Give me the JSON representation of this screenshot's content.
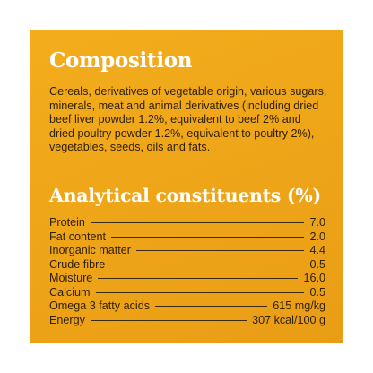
{
  "composition": {
    "title": "Composition",
    "text": "Cereals, derivatives of vegetable origin, various sugars, minerals, meat and animal derivatives (including dried beef liver powder 1.2%, equivalent to beef 2% and dried poultry powder 1.2%, equivalent to poultry 2%), vegetables, seeds, oils and fats."
  },
  "analytical": {
    "title": "Analytical constituents (%)",
    "rows": [
      {
        "label": "Protein",
        "value": "7.0"
      },
      {
        "label": "Fat content",
        "value": "2.0"
      },
      {
        "label": "Inorganic matter",
        "value": "4.4"
      },
      {
        "label": "Crude fibre",
        "value": "0.5"
      },
      {
        "label": "Moisture",
        "value": "16.0"
      },
      {
        "label": "Calcium",
        "value": "0.5"
      },
      {
        "label": "Omega 3 fatty acids",
        "value": "615 mg/kg"
      },
      {
        "label": "Energy",
        "value": "307 kcal/100 g"
      }
    ]
  },
  "colors": {
    "panel_background": "#eea418",
    "heading": "#ffffff",
    "body_text": "#2f2008"
  }
}
